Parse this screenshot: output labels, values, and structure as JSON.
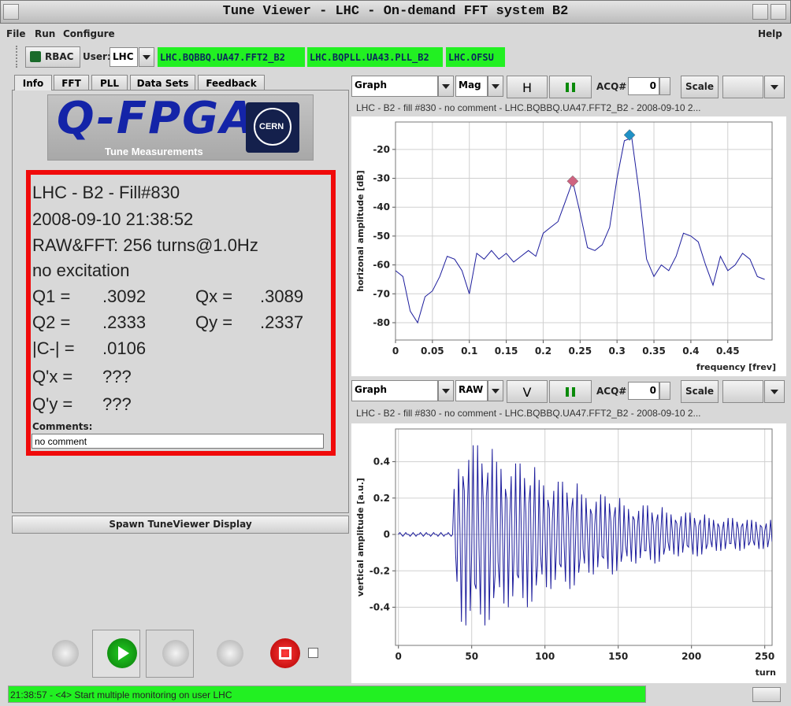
{
  "window": {
    "title": "Tune Viewer - LHC - On-demand FFT system B2"
  },
  "menu": [
    "File",
    "Run",
    "Configure",
    "Help"
  ],
  "toolbar": {
    "rbac": "RBAC",
    "user_label": "User:",
    "user": "LHC",
    "devices": [
      "LHC.BQBBQ.UA47.FFT2_B2",
      "LHC.BQPLL.UA43.PLL_B2",
      "LHC.OFSU"
    ]
  },
  "tabs": [
    "Info",
    "FFT",
    "PLL",
    "Data Sets",
    "Feedback"
  ],
  "logo": {
    "title": "Q-FPGA",
    "subtitle": "Tune Measurements",
    "cern": "CERN"
  },
  "info": {
    "lines": [
      "LHC - B2 - Fill#830",
      "2008-09-10 21:38:52",
      "RAW&FFT: 256 turns@1.0Hz",
      "no excitation"
    ],
    "rows": [
      [
        "Q1 =",
        ".3092",
        "Qx =",
        ".3089"
      ],
      [
        "Q2 =",
        ".2333",
        "Qy =",
        ".2337"
      ],
      [
        "|C-| =",
        ".0106"
      ],
      [
        "Q'x =",
        "???"
      ],
      [
        "Q'y =",
        "???"
      ]
    ],
    "comments_label": "Comments:",
    "comment": "no comment"
  },
  "spawn_button": "Spawn TuneViewer Display",
  "status": "21:38:57 - <4> Start multiple monitoring on user LHC",
  "chart_data": [
    {
      "type": "line",
      "controls": {
        "view": "Graph",
        "mode": "Mag",
        "plane": "H",
        "acq_label": "ACQ#",
        "acq": 0,
        "scale": "Scale"
      },
      "subtitle": "LHC - B2 - fill #830 - no comment - LHC.BQBBQ.UA47.FFT2_B2 - 2008-09-10 2...",
      "y_label": "horizonal amplitude [dB]",
      "x_label": "frequency [frev]",
      "color": "#1c1c9c",
      "grid": true,
      "x": [
        0,
        0.01,
        0.02,
        0.03,
        0.04,
        0.05,
        0.06,
        0.07,
        0.08,
        0.09,
        0.1,
        0.11,
        0.12,
        0.13,
        0.14,
        0.15,
        0.16,
        0.17,
        0.18,
        0.19,
        0.2,
        0.21,
        0.22,
        0.23,
        0.24,
        0.25,
        0.26,
        0.27,
        0.28,
        0.29,
        0.3,
        0.31,
        0.32,
        0.33,
        0.34,
        0.35,
        0.36,
        0.37,
        0.38,
        0.39,
        0.4,
        0.41,
        0.42,
        0.43,
        0.44,
        0.45,
        0.46,
        0.47,
        0.48,
        0.49,
        0.5
      ],
      "values": [
        -62,
        -64,
        -76,
        -80,
        -71,
        -69,
        -64,
        -57,
        -58,
        -62,
        -70,
        -56,
        -58,
        -55,
        -58,
        -56,
        -59,
        -57,
        -55,
        -57,
        -49,
        -47,
        -45,
        -38,
        -31,
        -42,
        -54,
        -55,
        -53,
        -47,
        -30,
        -17,
        -16,
        -35,
        -58,
        -64,
        -60,
        -62,
        -57,
        -49,
        -50,
        -52,
        -60,
        -67,
        -57,
        -62,
        -60,
        -56,
        -58,
        -64,
        -65
      ],
      "markers": [
        {
          "x": 0.24,
          "y": -31,
          "color": "#cf6380"
        },
        {
          "x": 0.317,
          "y": -15,
          "color": "#2091c6"
        }
      ],
      "xlim": [
        0,
        0.51
      ],
      "ylim": [
        -86,
        -10.5
      ],
      "xticks": [
        0,
        0.05,
        0.1,
        0.15,
        0.2,
        0.25,
        0.3,
        0.35,
        0.4,
        0.45
      ],
      "yticks": [
        -20,
        -30,
        -40,
        -50,
        -60,
        -70,
        -80
      ]
    },
    {
      "type": "line",
      "controls": {
        "view": "Graph",
        "mode": "RAW",
        "plane": "V",
        "acq_label": "ACQ#",
        "acq": 0,
        "scale": "Scale"
      },
      "subtitle": "LHC - B2 - fill #830 - no comment - LHC.BQBBQ.UA47.FFT2_B2 - 2008-09-10 2...",
      "y_label": "vertical amplitude [a.u.]",
      "x_label": "turn",
      "color": "#1c1c9c",
      "grid": true,
      "x": [
        0,
        1,
        2,
        3,
        4,
        5,
        6,
        7,
        8,
        9,
        10,
        11,
        12,
        13,
        14,
        15,
        16,
        17,
        18,
        19,
        20,
        21,
        22,
        23,
        24,
        25,
        26,
        27,
        28,
        29,
        30,
        31,
        32,
        33,
        34,
        35,
        36,
        37,
        38,
        39,
        40,
        41,
        42,
        43,
        44,
        45,
        46,
        47,
        48,
        49,
        50,
        51,
        52,
        53,
        54,
        55,
        56,
        57,
        58,
        59,
        60,
        61,
        62,
        63,
        64,
        65,
        66,
        67,
        68,
        69,
        70,
        71,
        72,
        73,
        74,
        75,
        76,
        77,
        78,
        79,
        80,
        81,
        82,
        83,
        84,
        85,
        86,
        87,
        88,
        89,
        90,
        91,
        92,
        93,
        94,
        95,
        96,
        97,
        98,
        99,
        100,
        101,
        102,
        103,
        104,
        105,
        106,
        107,
        108,
        109,
        110,
        111,
        112,
        113,
        114,
        115,
        116,
        117,
        118,
        119,
        120,
        121,
        122,
        123,
        124,
        125,
        126,
        127,
        128,
        129,
        130,
        131,
        132,
        133,
        134,
        135,
        136,
        137,
        138,
        139,
        140,
        141,
        142,
        143,
        144,
        145,
        146,
        147,
        148,
        149,
        150,
        151,
        152,
        153,
        154,
        155,
        156,
        157,
        158,
        159,
        160,
        161,
        162,
        163,
        164,
        165,
        166,
        167,
        168,
        169,
        170,
        171,
        172,
        173,
        174,
        175,
        176,
        177,
        178,
        179,
        180,
        181,
        182,
        183,
        184,
        185,
        186,
        187,
        188,
        189,
        190,
        191,
        192,
        193,
        194,
        195,
        196,
        197,
        198,
        199,
        200,
        201,
        202,
        203,
        204,
        205,
        206,
        207,
        208,
        209,
        210,
        211,
        212,
        213,
        214,
        215,
        216,
        217,
        218,
        219,
        220,
        221,
        222,
        223,
        224,
        225,
        226,
        227,
        228,
        229,
        230,
        231,
        232,
        233,
        234,
        235,
        236,
        237,
        238,
        239,
        240,
        241,
        242,
        243,
        244,
        245,
        246,
        247,
        248,
        249,
        250,
        251,
        252,
        253,
        254,
        255
      ],
      "values": [
        0,
        0.01,
        0,
        -0.01,
        0,
        0.01,
        0,
        0,
        -0.01,
        0,
        0.01,
        0,
        -0.01,
        0,
        0,
        0.01,
        0,
        -0.01,
        0,
        0.01,
        0,
        0,
        -0.01,
        0,
        0.01,
        0,
        0,
        -0.01,
        0,
        0.01,
        0,
        -0.01,
        0,
        0,
        0.01,
        0,
        -0.01,
        0,
        0.25,
        -0.11,
        -0.26,
        0.36,
        0.03,
        -0.48,
        0.32,
        0.24,
        -0.5,
        0.12,
        0.41,
        -0.42,
        -0.1,
        0.49,
        -0.27,
        -0.3,
        0.49,
        -0.07,
        -0.44,
        0.39,
        0.16,
        -0.5,
        0.21,
        0.34,
        -0.47,
        0,
        0.47,
        -0.35,
        -0.22,
        0.4,
        -0.15,
        -0.29,
        0.36,
        0.02,
        -0.38,
        0.25,
        0.19,
        -0.4,
        0.1,
        0.32,
        -0.34,
        -0.08,
        0.39,
        -0.22,
        -0.24,
        0.39,
        -0.05,
        -0.35,
        0.31,
        0.12,
        -0.4,
        0.17,
        0.27,
        -0.37,
        0,
        0.37,
        -0.28,
        -0.17,
        0.3,
        -0.11,
        -0.22,
        0.27,
        0.02,
        -0.29,
        0.19,
        0.14,
        -0.3,
        0.07,
        0.24,
        -0.25,
        -0.06,
        0.29,
        -0.16,
        -0.18,
        0.29,
        -0.04,
        -0.26,
        0.23,
        0.09,
        -0.3,
        0.13,
        0.2,
        -0.28,
        0,
        0.28,
        -0.21,
        -0.13,
        0.22,
        -0.08,
        -0.16,
        0.2,
        0.01,
        -0.21,
        0.14,
        0.11,
        -0.22,
        0.05,
        0.18,
        -0.18,
        -0.04,
        0.22,
        -0.12,
        -0.13,
        0.21,
        -0.03,
        -0.19,
        0.17,
        0.07,
        -0.22,
        0.09,
        0.15,
        -0.2,
        0,
        0.2,
        -0.15,
        -0.09,
        0.16,
        -0.06,
        -0.12,
        0.14,
        0.01,
        -0.15,
        0.1,
        0.08,
        -0.16,
        0.04,
        0.13,
        -0.13,
        -0.03,
        0.16,
        -0.09,
        -0.09,
        0.16,
        -0.02,
        -0.14,
        0.12,
        0.05,
        -0.16,
        0.07,
        0.11,
        -0.15,
        0,
        0.15,
        -0.11,
        -0.07,
        0.12,
        -0.04,
        -0.09,
        0.11,
        0.01,
        -0.11,
        0.08,
        0.06,
        -0.12,
        0.03,
        0.1,
        -0.1,
        -0.02,
        0.12,
        -0.06,
        -0.07,
        0.12,
        -0.02,
        -0.11,
        0.09,
        0.04,
        -0.12,
        0.05,
        0.08,
        -0.11,
        0,
        0.11,
        -0.08,
        -0.05,
        0.09,
        -0.03,
        -0.07,
        0.08,
        0.01,
        -0.09,
        0.06,
        0.04,
        -0.09,
        0.02,
        0.07,
        -0.08,
        -0.02,
        0.09,
        -0.05,
        -0.05,
        0.09,
        -0.01,
        -0.08,
        0.07,
        0.03,
        -0.09,
        0.04,
        0.06,
        -0.08,
        0,
        0.08,
        -0.06,
        -0.04,
        0.08,
        -0.03,
        -0.06,
        0.07,
        0,
        -0.08,
        0.05,
        0.04,
        -0.08,
        0.02,
        0.06,
        -0.07,
        -0.02,
        0.08,
        -0.04
      ],
      "xlim": [
        -2,
        255
      ],
      "ylim": [
        -0.61,
        0.58
      ],
      "xticks": [
        0,
        50,
        100,
        150,
        200,
        250
      ],
      "yticks": [
        0.4,
        0.2,
        0,
        -0.2,
        -0.4
      ]
    }
  ]
}
